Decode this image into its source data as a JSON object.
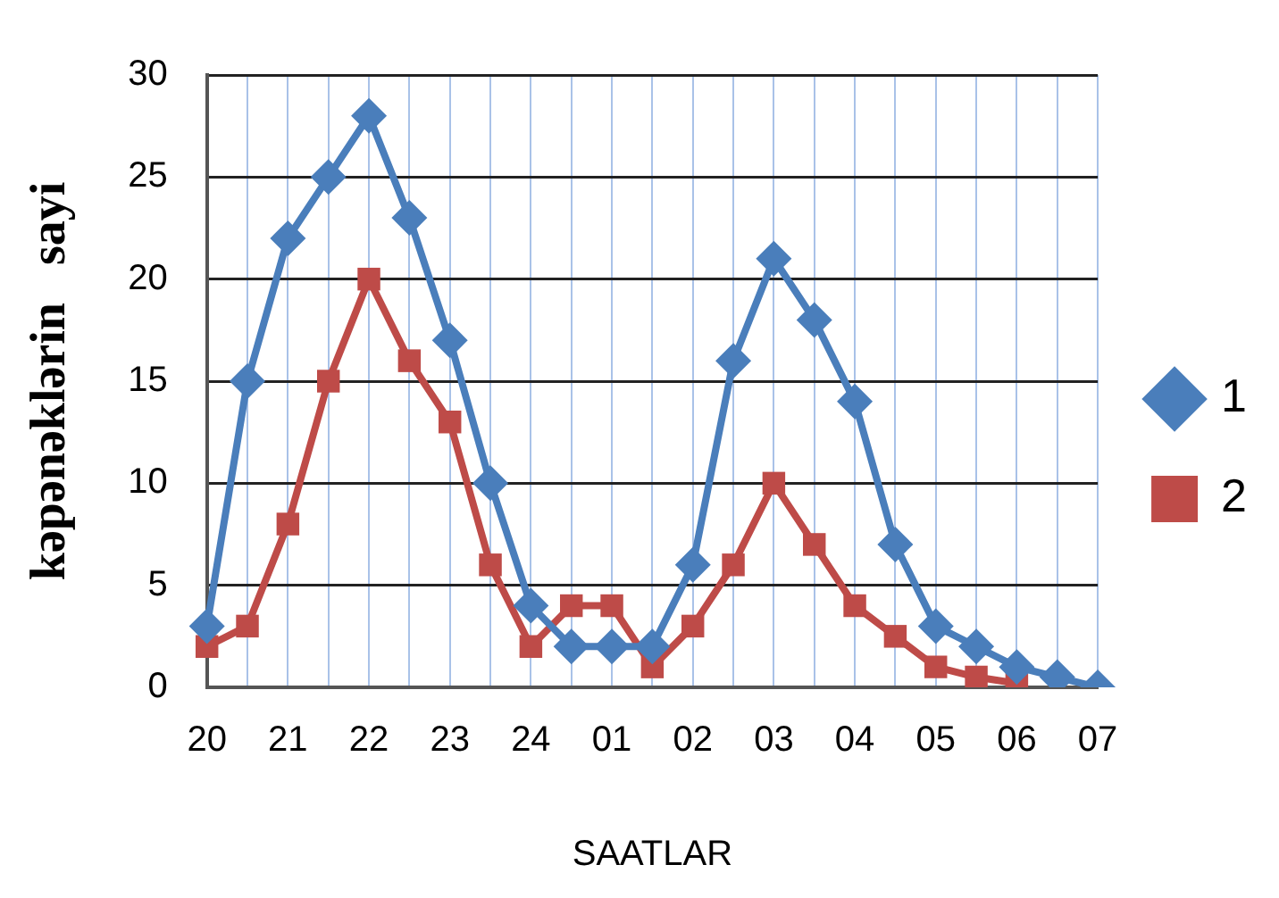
{
  "chart_data": {
    "type": "line",
    "xlabel": "SAATLAR",
    "ylabel": "kəpənəklərin   sayi",
    "categories": [
      "20",
      null,
      "21",
      null,
      "22",
      null,
      "23",
      null,
      "24",
      null,
      "01",
      null,
      "02",
      null,
      "03",
      null,
      "04",
      null,
      "05",
      null,
      "06",
      null,
      "07"
    ],
    "series": [
      {
        "name": "1",
        "color": "#4a7ebb",
        "marker": "diamond",
        "values": [
          3,
          15,
          22,
          25,
          28,
          23,
          17,
          10,
          4,
          2,
          2,
          2,
          6,
          16,
          21,
          18,
          14,
          7,
          3,
          2,
          1,
          0.5,
          0
        ]
      },
      {
        "name": "2",
        "color": "#be4b48",
        "marker": "square",
        "values": [
          2,
          3,
          8,
          15,
          20,
          16,
          13,
          6,
          2,
          4,
          4,
          1,
          3,
          6,
          10,
          7,
          4,
          2.5,
          1,
          0.5,
          0.2,
          null,
          null
        ]
      }
    ],
    "ylim": [
      0,
      30
    ],
    "yticks": [
      0,
      5,
      10,
      15,
      20,
      25,
      30
    ],
    "grid": true,
    "legend": "right"
  }
}
